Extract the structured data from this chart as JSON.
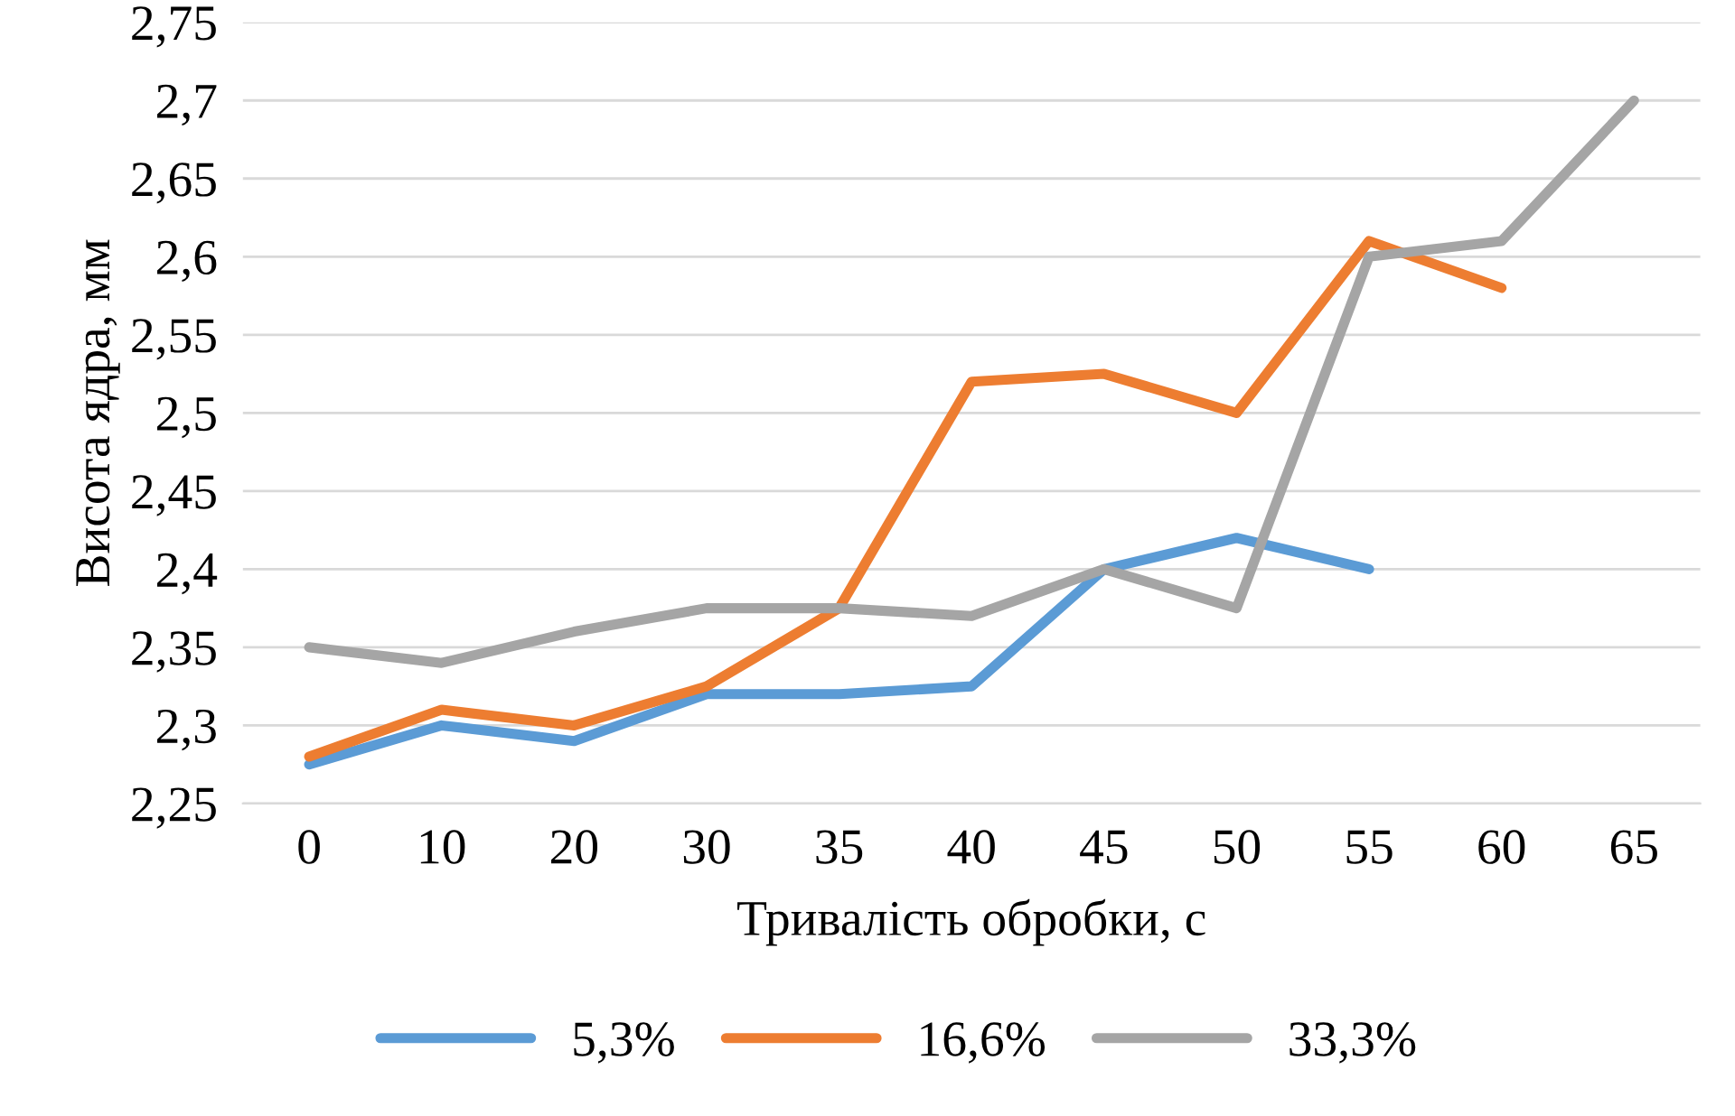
{
  "chart_data": {
    "type": "line",
    "xlabel": "Тривалість обробки, с",
    "ylabel": "Висота ядра, мм",
    "categories": [
      "0",
      "10",
      "20",
      "30",
      "35",
      "40",
      "45",
      "50",
      "55",
      "60",
      "65"
    ],
    "series": [
      {
        "name": "5,3%",
        "color": "#5b9bd5",
        "values": [
          2.275,
          2.3,
          2.29,
          2.32,
          2.32,
          2.325,
          2.4,
          2.42,
          2.4,
          null,
          null
        ]
      },
      {
        "name": "16,6%",
        "color": "#ed7d31",
        "values": [
          2.28,
          2.31,
          2.3,
          2.325,
          2.375,
          2.52,
          2.525,
          2.5,
          2.61,
          2.58,
          null
        ]
      },
      {
        "name": "33,3%",
        "color": "#a5a5a5",
        "values": [
          2.35,
          2.34,
          2.36,
          2.375,
          2.375,
          2.37,
          2.4,
          2.375,
          2.6,
          2.61,
          2.7
        ]
      }
    ],
    "ylim": [
      2.25,
      2.75
    ],
    "yticks": [
      {
        "value": 2.25,
        "label": "2,25"
      },
      {
        "value": 2.3,
        "label": "2,3"
      },
      {
        "value": 2.35,
        "label": "2,35"
      },
      {
        "value": 2.4,
        "label": "2,4"
      },
      {
        "value": 2.45,
        "label": "2,45"
      },
      {
        "value": 2.5,
        "label": "2,5"
      },
      {
        "value": 2.55,
        "label": "2,55"
      },
      {
        "value": 2.6,
        "label": "2,6"
      },
      {
        "value": 2.65,
        "label": "2,65"
      },
      {
        "value": 2.7,
        "label": "2,7"
      },
      {
        "value": 2.75,
        "label": "2,75"
      }
    ],
    "grid": "y",
    "legend": "bottom",
    "marker": "none",
    "line_style": "solid"
  }
}
